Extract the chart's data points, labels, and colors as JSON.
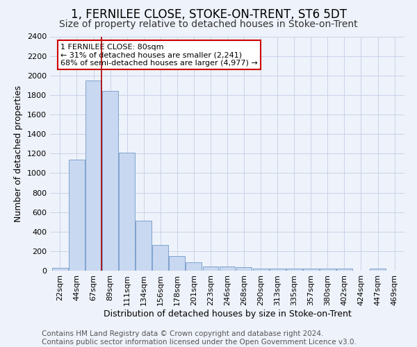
{
  "title": "1, FERNILEE CLOSE, STOKE-ON-TRENT, ST6 5DT",
  "subtitle": "Size of property relative to detached houses in Stoke-on-Trent",
  "xlabel": "Distribution of detached houses by size in Stoke-on-Trent",
  "ylabel": "Number of detached properties",
  "categories": [
    "22sqm",
    "44sqm",
    "67sqm",
    "89sqm",
    "111sqm",
    "134sqm",
    "156sqm",
    "178sqm",
    "201sqm",
    "223sqm",
    "246sqm",
    "268sqm",
    "290sqm",
    "313sqm",
    "335sqm",
    "357sqm",
    "380sqm",
    "402sqm",
    "424sqm",
    "447sqm",
    "469sqm"
  ],
  "values": [
    30,
    1140,
    1950,
    1840,
    1210,
    510,
    265,
    150,
    85,
    45,
    40,
    35,
    20,
    22,
    20,
    18,
    18,
    18,
    0,
    22,
    0
  ],
  "bar_color": "#c8d8f0",
  "bar_edge_color": "#7098c8",
  "grid_color": "#c8d4e8",
  "bg_color": "#eef2fa",
  "vline_x_index": 2.47,
  "vline_color": "#aa0000",
  "annotation_text": "1 FERNILEE CLOSE: 80sqm\n← 31% of detached houses are smaller (2,241)\n68% of semi-detached houses are larger (4,977) →",
  "annotation_box_color": "white",
  "annotation_box_edge": "#cc0000",
  "footer_line1": "Contains HM Land Registry data © Crown copyright and database right 2024.",
  "footer_line2": "Contains public sector information licensed under the Open Government Licence v3.0.",
  "ylim": [
    0,
    2400
  ],
  "yticks": [
    0,
    200,
    400,
    600,
    800,
    1000,
    1200,
    1400,
    1600,
    1800,
    2000,
    2200,
    2400
  ],
  "title_fontsize": 12,
  "subtitle_fontsize": 10,
  "xlabel_fontsize": 9,
  "ylabel_fontsize": 9,
  "tick_fontsize": 8,
  "footer_fontsize": 7.5,
  "annot_fontsize": 8
}
